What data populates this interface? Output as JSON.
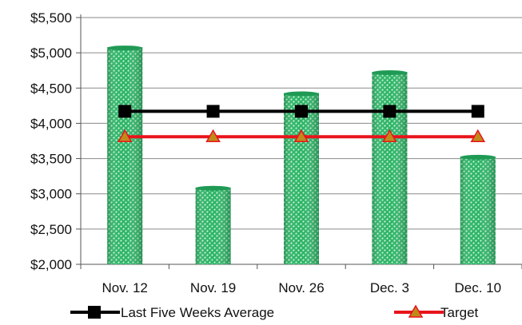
{
  "chart_data": {
    "type": "bar",
    "categories": [
      "Nov. 12",
      "Nov. 19",
      "Nov. 26",
      "Dec. 3",
      "Dec. 10"
    ],
    "y_tick_labels": [
      "$2,000",
      "$2,500",
      "$3,000",
      "$3,500",
      "$4,000",
      "$4,500",
      "$5,000",
      "$5,500"
    ],
    "ylim": [
      2000,
      5500
    ],
    "grid": true,
    "series": [
      {
        "type": "bar",
        "values": [
          5080,
          3090,
          4430,
          4730,
          3530
        ],
        "color": "#22a05a"
      },
      {
        "type": "line",
        "name": "Last Five Weeks Average",
        "values": [
          4170,
          4170,
          4170,
          4170,
          4170
        ],
        "color": "#000000",
        "marker": "square"
      },
      {
        "type": "line",
        "name": "Target",
        "values": [
          3810,
          3810,
          3810,
          3810,
          3810
        ],
        "color": "#e8141b",
        "marker": "triangle",
        "marker_color": "#c08a1a"
      }
    ],
    "legend_position": "bottom"
  }
}
